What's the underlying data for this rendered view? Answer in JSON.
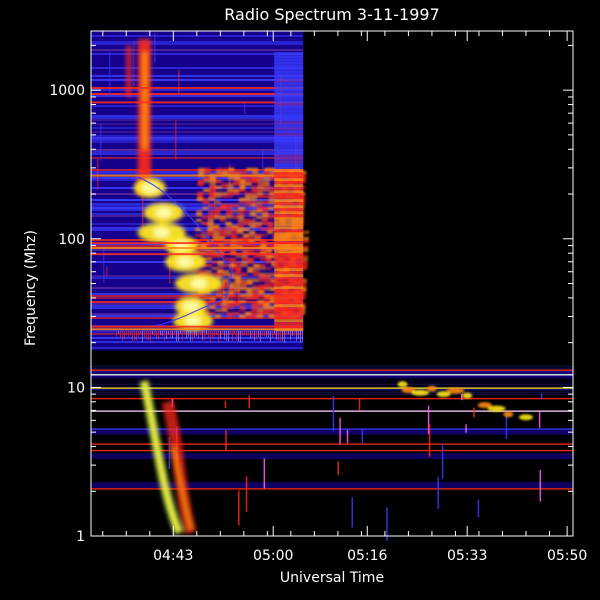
{
  "chart_data": {
    "type": "heatmap",
    "title": "Radio Spectrum 3-11-1997",
    "xlabel": "Universal Time",
    "ylabel": "Frequency (Mhz)",
    "yscale": "log",
    "ylim": [
      1,
      2500
    ],
    "xlim": [
      "04:29",
      "05:51"
    ],
    "x_ticks": [
      "04:43",
      "05:00",
      "05:16",
      "05:33",
      "05:50"
    ],
    "y_ticks": [
      "1",
      "10",
      "100",
      "1000"
    ],
    "grid": false,
    "colormap": [
      "#000000",
      "#16008c",
      "#3a3cff",
      "#ff2a1a",
      "#ff8a10",
      "#ffe81a",
      "#ffffb0"
    ],
    "panels": [
      {
        "name": "",
        "freq_range_mhz": [
          18,
          2500
        ],
        "time_range": [
          "04:29",
          "05:00"
        ]
      },
      {
        "name": "",
        "freq_range_mhz": [
          1,
          14
        ],
        "time_range": [
          "04:29",
          "05:51"
        ]
      }
    ],
    "features": [
      {
        "label": "",
        "kind": "burst",
        "time": "04:38",
        "freq_range_mhz": [
          300,
          2200
        ]
      },
      {
        "label": "",
        "kind": "drifting emission",
        "time_range": [
          "04:38",
          "04:47"
        ],
        "freq_range_mhz": [
          25,
          180
        ]
      },
      {
        "label": "",
        "kind": "type III burst",
        "time_range": [
          "04:38",
          "04:44"
        ],
        "freq_range_mhz": [
          1,
          12
        ]
      },
      {
        "label": "",
        "kind": "patchy emission",
        "time_range": [
          "05:22",
          "05:40"
        ],
        "freq_range_mhz": [
          6,
          11
        ]
      }
    ]
  }
}
